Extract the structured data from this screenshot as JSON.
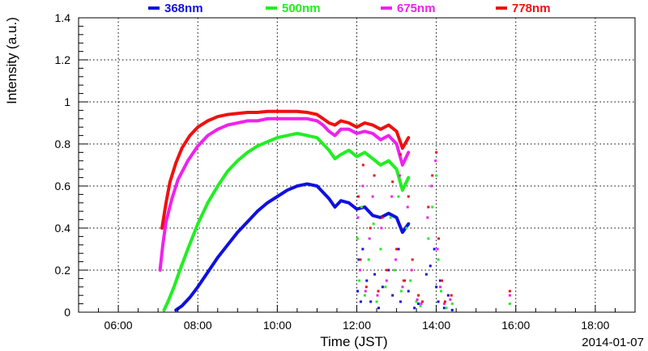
{
  "chart_data": {
    "type": "scatter",
    "title": "",
    "xlabel": "Time (JST)",
    "ylabel": "Intensity (a.u.)",
    "date": "2014-01-07",
    "xlim": [
      5.0,
      19.0
    ],
    "ylim": [
      0,
      1.4
    ],
    "grid": true,
    "legend_position": "top",
    "x_ticks": [
      {
        "value": 6,
        "label": "06:00"
      },
      {
        "value": 8,
        "label": "08:00"
      },
      {
        "value": 10,
        "label": "10:00"
      },
      {
        "value": 12,
        "label": "12:00"
      },
      {
        "value": 14,
        "label": "14:00"
      },
      {
        "value": 16,
        "label": "16:00"
      },
      {
        "value": 18,
        "label": "18:00"
      }
    ],
    "y_ticks": [
      {
        "value": 0,
        "label": "0"
      },
      {
        "value": 0.2,
        "label": "0.2"
      },
      {
        "value": 0.4,
        "label": "0.4"
      },
      {
        "value": 0.6,
        "label": "0.6"
      },
      {
        "value": 0.8,
        "label": "0.8"
      },
      {
        "value": 1.0,
        "label": "1"
      },
      {
        "value": 1.2,
        "label": "1.2"
      },
      {
        "value": 1.4,
        "label": "1.4"
      }
    ],
    "series": [
      {
        "name": "368nm",
        "color": "#1010e0",
        "x": [
          7.45,
          7.6,
          7.8,
          8.0,
          8.25,
          8.5,
          8.75,
          9.0,
          9.25,
          9.5,
          9.75,
          10.0,
          10.25,
          10.5,
          10.75,
          11.0,
          11.15,
          11.3,
          11.45,
          11.6,
          11.8,
          12.0,
          12.2,
          12.4,
          12.6,
          12.8,
          13.0,
          13.15,
          13.3
        ],
        "y": [
          0.01,
          0.03,
          0.07,
          0.12,
          0.19,
          0.26,
          0.32,
          0.38,
          0.43,
          0.48,
          0.52,
          0.55,
          0.58,
          0.6,
          0.61,
          0.6,
          0.57,
          0.54,
          0.5,
          0.53,
          0.52,
          0.49,
          0.5,
          0.46,
          0.45,
          0.47,
          0.45,
          0.38,
          0.42
        ],
        "scatter_x": [
          12.02,
          12.05,
          12.1,
          12.15,
          12.25,
          12.35,
          12.45,
          12.55,
          12.65,
          12.8,
          12.9,
          13.05,
          13.1,
          13.2,
          13.3,
          13.45,
          13.55,
          13.75,
          13.85,
          13.95,
          14.0,
          14.05,
          14.1,
          14.2,
          14.3,
          14.4
        ],
        "scatter_y": [
          0.1,
          0.25,
          0.05,
          0.3,
          0.15,
          0.05,
          0.18,
          0.02,
          0.12,
          0.2,
          0.08,
          0.3,
          0.05,
          0.15,
          0.1,
          0.02,
          0.04,
          0.18,
          0.22,
          0.3,
          0.12,
          0.05,
          0.15,
          0.02,
          0.08,
          0.01
        ]
      },
      {
        "name": "500nm",
        "color": "#22ee22",
        "x": [
          7.15,
          7.25,
          7.4,
          7.55,
          7.75,
          8.0,
          8.25,
          8.5,
          8.75,
          9.0,
          9.25,
          9.5,
          9.75,
          10.0,
          10.25,
          10.5,
          10.75,
          11.0,
          11.15,
          11.3,
          11.45,
          11.6,
          11.8,
          12.0,
          12.2,
          12.4,
          12.6,
          12.8,
          13.0,
          13.15,
          13.3
        ],
        "y": [
          0.01,
          0.05,
          0.12,
          0.2,
          0.3,
          0.42,
          0.52,
          0.6,
          0.67,
          0.72,
          0.76,
          0.79,
          0.81,
          0.83,
          0.84,
          0.85,
          0.84,
          0.83,
          0.8,
          0.77,
          0.73,
          0.75,
          0.77,
          0.74,
          0.76,
          0.73,
          0.7,
          0.72,
          0.68,
          0.58,
          0.64
        ],
        "scatter_x": [
          12.02,
          12.06,
          12.12,
          12.2,
          12.3,
          12.42,
          12.5,
          12.6,
          12.72,
          12.85,
          12.95,
          13.05,
          13.12,
          13.25,
          13.35,
          13.5,
          13.6,
          13.8,
          13.9,
          14.0,
          14.05,
          14.12,
          14.25,
          14.4,
          15.85
        ],
        "scatter_y": [
          0.35,
          0.15,
          0.5,
          0.08,
          0.25,
          0.42,
          0.05,
          0.3,
          0.12,
          0.45,
          0.2,
          0.55,
          0.1,
          0.4,
          0.15,
          0.05,
          0.03,
          0.35,
          0.5,
          0.65,
          0.25,
          0.1,
          0.02,
          0.04,
          0.04
        ]
      },
      {
        "name": "675nm",
        "color": "#ee22ee",
        "x": [
          7.05,
          7.12,
          7.2,
          7.35,
          7.5,
          7.75,
          8.0,
          8.25,
          8.5,
          8.75,
          9.0,
          9.25,
          9.5,
          9.75,
          10.0,
          10.25,
          10.5,
          10.75,
          11.0,
          11.15,
          11.3,
          11.45,
          11.6,
          11.8,
          12.0,
          12.2,
          12.4,
          12.6,
          12.8,
          13.0,
          13.15,
          13.3
        ],
        "y": [
          0.2,
          0.32,
          0.43,
          0.54,
          0.63,
          0.72,
          0.79,
          0.84,
          0.87,
          0.89,
          0.9,
          0.91,
          0.91,
          0.92,
          0.92,
          0.92,
          0.92,
          0.92,
          0.91,
          0.89,
          0.86,
          0.84,
          0.87,
          0.87,
          0.85,
          0.86,
          0.85,
          0.82,
          0.84,
          0.8,
          0.7,
          0.76
        ],
        "scatter_x": [
          12.03,
          12.08,
          12.15,
          12.22,
          12.32,
          12.4,
          12.52,
          12.62,
          12.75,
          12.88,
          12.98,
          13.08,
          13.15,
          13.28,
          13.38,
          13.52,
          13.62,
          13.78,
          13.88,
          13.98,
          14.03,
          14.1,
          14.2,
          14.35,
          15.85
        ],
        "scatter_y": [
          0.45,
          0.2,
          0.6,
          0.1,
          0.35,
          0.55,
          0.08,
          0.4,
          0.15,
          0.55,
          0.25,
          0.65,
          0.12,
          0.5,
          0.2,
          0.06,
          0.04,
          0.45,
          0.6,
          0.72,
          0.3,
          0.12,
          0.04,
          0.06,
          0.08
        ]
      },
      {
        "name": "778nm",
        "color": "#ee1111",
        "x": [
          7.1,
          7.2,
          7.3,
          7.45,
          7.6,
          7.8,
          8.0,
          8.25,
          8.5,
          8.75,
          9.0,
          9.25,
          9.5,
          9.75,
          10.0,
          10.25,
          10.5,
          10.75,
          11.0,
          11.15,
          11.3,
          11.45,
          11.6,
          11.8,
          12.0,
          12.2,
          12.4,
          12.6,
          12.8,
          13.0,
          13.15,
          13.3
        ],
        "y": [
          0.4,
          0.52,
          0.62,
          0.71,
          0.78,
          0.84,
          0.88,
          0.91,
          0.93,
          0.94,
          0.945,
          0.95,
          0.95,
          0.955,
          0.955,
          0.955,
          0.955,
          0.95,
          0.94,
          0.92,
          0.9,
          0.89,
          0.91,
          0.9,
          0.88,
          0.9,
          0.89,
          0.87,
          0.89,
          0.86,
          0.78,
          0.83
        ],
        "scatter_x": [
          12.04,
          12.09,
          12.16,
          12.24,
          12.34,
          12.44,
          12.54,
          12.64,
          12.76,
          12.9,
          13.0,
          13.1,
          13.18,
          13.3,
          13.4,
          13.55,
          13.65,
          13.8,
          13.9,
          14.0,
          14.06,
          14.14,
          14.22,
          14.38,
          15.85
        ],
        "scatter_y": [
          0.55,
          0.25,
          0.7,
          0.12,
          0.4,
          0.65,
          0.1,
          0.45,
          0.2,
          0.62,
          0.3,
          0.75,
          0.15,
          0.55,
          0.25,
          0.08,
          0.05,
          0.5,
          0.65,
          0.76,
          0.35,
          0.15,
          0.05,
          0.08,
          0.1
        ]
      }
    ]
  }
}
